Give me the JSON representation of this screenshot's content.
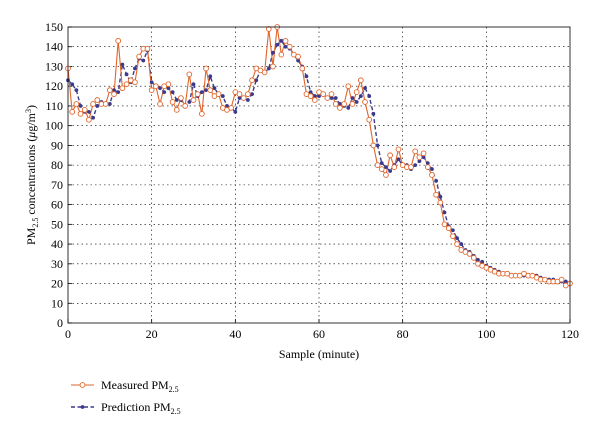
{
  "chart_data": {
    "type": "line",
    "xlabel": "Sample (minute)",
    "ylabel": "PM2.5 concentrations (μg/m3)",
    "ylabel_parts": {
      "prefix": "PM",
      "subscript": "2.5",
      "middle": " concentrations (",
      "mu": "μ",
      "unit": "g/m",
      "sup": "3",
      "suffix": ")"
    },
    "xlim": [
      0,
      120
    ],
    "ylim": [
      0,
      150
    ],
    "xticks": [
      0,
      20,
      40,
      60,
      80,
      100,
      120
    ],
    "yticks": [
      0,
      10,
      20,
      30,
      40,
      50,
      60,
      70,
      80,
      90,
      100,
      110,
      120,
      130,
      140,
      150
    ],
    "grid": true,
    "legend_position": "below-left",
    "series": [
      {
        "name": "Measured PM2.5",
        "legend_main": "Measured PM",
        "legend_sub": "2.5",
        "color": "#e1652a",
        "marker": "open-circle",
        "line": "solid",
        "x": [
          0,
          1,
          2,
          3,
          4,
          5,
          6,
          7,
          8,
          9,
          10,
          11,
          12,
          13,
          14,
          15,
          16,
          17,
          18,
          19,
          20,
          21,
          22,
          23,
          24,
          25,
          26,
          27,
          28,
          29,
          30,
          31,
          32,
          33,
          34,
          35,
          36,
          37,
          38,
          39,
          40,
          41,
          42,
          43,
          44,
          45,
          46,
          47,
          48,
          49,
          50,
          51,
          52,
          53,
          54,
          55,
          56,
          57,
          58,
          59,
          60,
          61,
          62,
          63,
          64,
          65,
          66,
          67,
          68,
          69,
          70,
          71,
          72,
          73,
          74,
          75,
          76,
          77,
          78,
          79,
          80,
          81,
          82,
          83,
          84,
          85,
          86,
          87,
          88,
          89,
          90,
          91,
          92,
          93,
          94,
          95,
          96,
          97,
          98,
          99,
          100,
          101,
          102,
          103,
          104,
          105,
          106,
          107,
          108,
          109,
          110,
          111,
          112,
          113,
          114,
          115,
          116,
          117,
          118,
          119,
          120
        ],
        "values": [
          129,
          107,
          111,
          106,
          108,
          103,
          111,
          113,
          111,
          111,
          118,
          116,
          143,
          119,
          121,
          123,
          122,
          135,
          139,
          139,
          118,
          120,
          111,
          120,
          121,
          112,
          108,
          114,
          110,
          126,
          113,
          116,
          106,
          129,
          118,
          115,
          116,
          109,
          108,
          109,
          117,
          116,
          114,
          116,
          123,
          129,
          128,
          127,
          149,
          130,
          150,
          136,
          143,
          140,
          136,
          135,
          129,
          116,
          115,
          113,
          117,
          116,
          114,
          116,
          111,
          109,
          111,
          120,
          111,
          117,
          123,
          112,
          103,
          90,
          80,
          78,
          75,
          85,
          79,
          88,
          80,
          79,
          79,
          87,
          84,
          86,
          79,
          75,
          65,
          61,
          50,
          48,
          44,
          40,
          37,
          36,
          35,
          33,
          30,
          29,
          28,
          27,
          26,
          25,
          25,
          25,
          24,
          24,
          24,
          25,
          24,
          24,
          23,
          22,
          22,
          21,
          21,
          21,
          22,
          19,
          20
        ]
      },
      {
        "name": "Prediction PM2.5",
        "legend_main": "Prediction PM",
        "legend_sub": "2.5",
        "color": "#3b3a8c",
        "marker": "filled-dot",
        "line": "dashed",
        "x": [
          0,
          1,
          2,
          3,
          4,
          5,
          6,
          7,
          8,
          9,
          10,
          11,
          12,
          13,
          14,
          15,
          16,
          17,
          18,
          19,
          20,
          21,
          22,
          23,
          24,
          25,
          26,
          27,
          28,
          29,
          30,
          31,
          32,
          33,
          34,
          35,
          36,
          37,
          38,
          39,
          40,
          41,
          42,
          43,
          44,
          45,
          46,
          47,
          48,
          49,
          50,
          51,
          52,
          53,
          54,
          55,
          56,
          57,
          58,
          59,
          60,
          61,
          62,
          63,
          64,
          65,
          66,
          67,
          68,
          69,
          70,
          71,
          72,
          73,
          74,
          75,
          76,
          77,
          78,
          79,
          80,
          81,
          82,
          83,
          84,
          85,
          86,
          87,
          88,
          89,
          90,
          91,
          92,
          93,
          94,
          95,
          96,
          97,
          98,
          99,
          100,
          101,
          102,
          103,
          104,
          105,
          106,
          107,
          108,
          109,
          110,
          111,
          112,
          113,
          114,
          115,
          116,
          117,
          118,
          119,
          120
        ],
        "values": [
          123,
          121,
          118,
          110,
          107,
          107,
          104,
          110,
          112,
          111,
          111,
          118,
          117,
          131,
          126,
          122,
          129,
          134,
          133,
          138,
          122,
          120,
          119,
          117,
          119,
          117,
          113,
          113,
          110,
          112,
          121,
          115,
          117,
          118,
          125,
          119,
          116,
          115,
          110,
          109,
          107,
          114,
          114,
          113,
          116,
          123,
          128,
          127,
          129,
          137,
          141,
          143,
          140,
          139,
          136,
          133,
          130,
          125,
          117,
          115,
          115,
          116,
          114,
          114,
          114,
          111,
          110,
          109,
          114,
          112,
          115,
          119,
          115,
          106,
          90,
          81,
          79,
          77,
          80,
          83,
          80,
          80,
          78,
          80,
          82,
          84,
          81,
          78,
          72,
          64,
          56,
          49,
          47,
          43,
          40,
          37,
          36,
          34,
          32,
          31,
          29,
          28,
          27,
          26,
          25,
          25,
          24,
          24,
          24,
          24,
          24,
          24,
          24,
          23,
          22,
          22,
          22,
          21,
          21,
          21,
          20
        ]
      }
    ]
  }
}
